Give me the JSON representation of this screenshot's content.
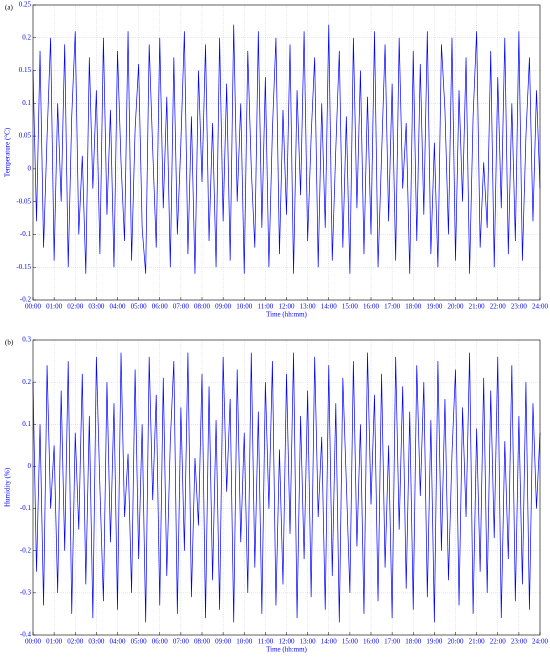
{
  "chart_data": [
    {
      "type": "line",
      "panel_label": "(a)",
      "x_label": "Time (hh:mm)",
      "y_label": "Temperature (°C)",
      "xlim": [
        0,
        1440
      ],
      "ylim": [
        -0.2,
        0.25
      ],
      "grid": true,
      "xticks": [
        {
          "value": 0,
          "label": "00:00"
        },
        {
          "value": 60,
          "label": "01:00"
        },
        {
          "value": 120,
          "label": "02:00"
        },
        {
          "value": 180,
          "label": "03:00"
        },
        {
          "value": 240,
          "label": "04:00"
        },
        {
          "value": 300,
          "label": "05:00"
        },
        {
          "value": 360,
          "label": "06:00"
        },
        {
          "value": 420,
          "label": "07:00"
        },
        {
          "value": 480,
          "label": "08:00"
        },
        {
          "value": 540,
          "label": "09:00"
        },
        {
          "value": 600,
          "label": "10:00"
        },
        {
          "value": 660,
          "label": "11:00"
        },
        {
          "value": 720,
          "label": "12:00"
        },
        {
          "value": 780,
          "label": "13:00"
        },
        {
          "value": 840,
          "label": "14:00"
        },
        {
          "value": 900,
          "label": "15:00"
        },
        {
          "value": 960,
          "label": "16:00"
        },
        {
          "value": 1020,
          "label": "17:00"
        },
        {
          "value": 1080,
          "label": "18:00"
        },
        {
          "value": 1140,
          "label": "19:00"
        },
        {
          "value": 1200,
          "label": "20:00"
        },
        {
          "value": 1260,
          "label": "21:00"
        },
        {
          "value": 1320,
          "label": "22:00"
        },
        {
          "value": 1380,
          "label": "23:00"
        },
        {
          "value": 1440,
          "label": "24:00"
        }
      ],
      "yticks": [
        -0.2,
        -0.15,
        -0.1,
        -0.05,
        0,
        0.05,
        0.1,
        0.15,
        0.2,
        0.25
      ],
      "x": [
        0,
        10,
        20,
        30,
        40,
        50,
        60,
        70,
        80,
        90,
        100,
        110,
        120,
        130,
        140,
        150,
        160,
        170,
        180,
        190,
        200,
        210,
        220,
        230,
        240,
        250,
        260,
        270,
        280,
        290,
        300,
        310,
        320,
        330,
        340,
        350,
        360,
        370,
        380,
        390,
        400,
        410,
        420,
        430,
        440,
        450,
        460,
        470,
        480,
        490,
        500,
        510,
        520,
        530,
        540,
        550,
        560,
        570,
        580,
        590,
        600,
        610,
        620,
        630,
        640,
        650,
        660,
        670,
        680,
        690,
        700,
        710,
        720,
        730,
        740,
        750,
        760,
        770,
        780,
        790,
        800,
        810,
        820,
        830,
        840,
        850,
        860,
        870,
        880,
        890,
        900,
        910,
        920,
        930,
        940,
        950,
        960,
        970,
        980,
        990,
        1000,
        1010,
        1020,
        1030,
        1040,
        1050,
        1060,
        1070,
        1080,
        1090,
        1100,
        1110,
        1120,
        1130,
        1140,
        1150,
        1160,
        1170,
        1180,
        1190,
        1200,
        1210,
        1220,
        1230,
        1240,
        1250,
        1260,
        1270,
        1280,
        1290,
        1300,
        1310,
        1320,
        1330,
        1340,
        1350,
        1360,
        1370,
        1380,
        1390,
        1400,
        1410,
        1420,
        1430,
        1440
      ],
      "series": [
        {
          "color": "#0000ff",
          "values": [
            0.15,
            -0.08,
            0.18,
            -0.12,
            0.05,
            0.2,
            -0.14,
            0.1,
            -0.05,
            0.19,
            -0.15,
            0.08,
            0.21,
            -0.1,
            0.02,
            -0.16,
            0.17,
            -0.03,
            0.12,
            -0.13,
            0.2,
            -0.07,
            0.09,
            -0.15,
            0.18,
            0.01,
            -0.11,
            0.21,
            -0.14,
            0.06,
            0.16,
            -0.09,
            -0.16,
            0.19,
            0.03,
            -0.12,
            0.2,
            -0.06,
            0.11,
            -0.15,
            0.17,
            -0.1,
            0.04,
            0.21,
            -0.13,
            0.08,
            -0.16,
            0.15,
            -0.02,
            0.19,
            -0.11,
            0.07,
            -0.15,
            0.2,
            -0.08,
            0.13,
            -0.14,
            0.22,
            -0.05,
            0.1,
            -0.16,
            0.18,
            0,
            -0.12,
            0.21,
            -0.09,
            0.14,
            -0.15,
            0.06,
            0.2,
            -0.13,
            0.09,
            -0.07,
            0.19,
            -0.16,
            0.12,
            -0.04,
            0.21,
            -0.11,
            0.05,
            0.17,
            -0.15,
            0.1,
            -0.09,
            0.22,
            -0.14,
            0.03,
            0.18,
            -0.12,
            0.08,
            -0.16,
            0.2,
            -0.06,
            0.15,
            -0.13,
            0.11,
            -0.1,
            0.21,
            -0.15,
            0.02,
            0.19,
            -0.08,
            0.13,
            -0.14,
            0.2,
            -0.03,
            0.07,
            -0.16,
            0.18,
            -0.11,
            0.16,
            -0.07,
            0.21,
            -0.13,
            0.04,
            -0.15,
            0.19,
            0.09,
            -0.1,
            0.2,
            -0.14,
            0.12,
            -0.05,
            0.17,
            -0.16,
            0.08,
            0.21,
            -0.12,
            0.01,
            -0.09,
            0.18,
            -0.15,
            0.14,
            -0.06,
            0.2,
            -0.13,
            0.1,
            -0.11,
            0.21,
            -0.14,
            0.05,
            0.17,
            -0.08,
            0.12,
            -0.03
          ]
        }
      ]
    },
    {
      "type": "line",
      "panel_label": "(b)",
      "x_label": "Time (hh:mm)",
      "y_label": "Humidity (%)",
      "xlim": [
        0,
        1440
      ],
      "ylim": [
        -0.4,
        0.3
      ],
      "grid": true,
      "xticks": [
        {
          "value": 0,
          "label": "00:00"
        },
        {
          "value": 60,
          "label": "01:00"
        },
        {
          "value": 120,
          "label": "02:00"
        },
        {
          "value": 180,
          "label": "03:00"
        },
        {
          "value": 240,
          "label": "04:00"
        },
        {
          "value": 300,
          "label": "05:00"
        },
        {
          "value": 360,
          "label": "06:00"
        },
        {
          "value": 420,
          "label": "07:00"
        },
        {
          "value": 480,
          "label": "08:00"
        },
        {
          "value": 540,
          "label": "09:00"
        },
        {
          "value": 600,
          "label": "10:00"
        },
        {
          "value": 660,
          "label": "11:00"
        },
        {
          "value": 720,
          "label": "12:00"
        },
        {
          "value": 780,
          "label": "13:00"
        },
        {
          "value": 840,
          "label": "14:00"
        },
        {
          "value": 900,
          "label": "15:00"
        },
        {
          "value": 960,
          "label": "16:00"
        },
        {
          "value": 1020,
          "label": "17:00"
        },
        {
          "value": 1080,
          "label": "18:00"
        },
        {
          "value": 1140,
          "label": "19:00"
        },
        {
          "value": 1200,
          "label": "20:00"
        },
        {
          "value": 1260,
          "label": "21:00"
        },
        {
          "value": 1320,
          "label": "22:00"
        },
        {
          "value": 1380,
          "label": "23:00"
        },
        {
          "value": 1440,
          "label": "24:00"
        }
      ],
      "yticks": [
        -0.4,
        -0.3,
        -0.2,
        -0.1,
        0,
        0.1,
        0.2,
        0.3
      ],
      "x": [
        0,
        10,
        20,
        30,
        40,
        50,
        60,
        70,
        80,
        90,
        100,
        110,
        120,
        130,
        140,
        150,
        160,
        170,
        180,
        190,
        200,
        210,
        220,
        230,
        240,
        250,
        260,
        270,
        280,
        290,
        300,
        310,
        320,
        330,
        340,
        350,
        360,
        370,
        380,
        390,
        400,
        410,
        420,
        430,
        440,
        450,
        460,
        470,
        480,
        490,
        500,
        510,
        520,
        530,
        540,
        550,
        560,
        570,
        580,
        590,
        600,
        610,
        620,
        630,
        640,
        650,
        660,
        670,
        680,
        690,
        700,
        710,
        720,
        730,
        740,
        750,
        760,
        770,
        780,
        790,
        800,
        810,
        820,
        830,
        840,
        850,
        860,
        870,
        880,
        890,
        900,
        910,
        920,
        930,
        940,
        950,
        960,
        970,
        980,
        990,
        1000,
        1010,
        1020,
        1030,
        1040,
        1050,
        1060,
        1070,
        1080,
        1090,
        1100,
        1110,
        1120,
        1130,
        1140,
        1150,
        1160,
        1170,
        1180,
        1190,
        1200,
        1210,
        1220,
        1230,
        1240,
        1250,
        1260,
        1270,
        1280,
        1290,
        1300,
        1310,
        1320,
        1330,
        1340,
        1350,
        1360,
        1370,
        1380,
        1390,
        1400,
        1410,
        1420,
        1430,
        1440
      ],
      "series": [
        {
          "color": "#0000ff",
          "values": [
            0.2,
            -0.25,
            0.1,
            -0.33,
            0.24,
            -0.1,
            0.05,
            -0.3,
            0.18,
            -0.2,
            0.25,
            -0.35,
            0.08,
            -0.15,
            0.22,
            -0.28,
            0.12,
            -0.36,
            0.26,
            -0.05,
            -0.32,
            0.2,
            -0.18,
            0.15,
            -0.34,
            0.27,
            -0.12,
            0.03,
            -0.3,
            0.23,
            -0.22,
            0.1,
            -0.37,
            0.26,
            -0.08,
            0.17,
            -0.33,
            0.21,
            -0.26,
            0.06,
            0.25,
            -0.35,
            0.14,
            -0.2,
            0.27,
            -0.31,
            0.02,
            -0.14,
            0.22,
            -0.36,
            0.19,
            -0.27,
            0.11,
            -0.34,
            0.26,
            -0.06,
            0.16,
            -0.37,
            0.23,
            -0.18,
            0.08,
            -0.3,
            0.27,
            -0.24,
            0.13,
            -0.35,
            0.2,
            -0.1,
            0.25,
            -0.33,
            0.04,
            -0.28,
            0.22,
            -0.16,
            0.27,
            -0.36,
            0.12,
            -0.22,
            0.18,
            -0.31,
            0.26,
            -0.12,
            0.07,
            -0.34,
            0.24,
            -0.26,
            0.15,
            -0.37,
            0.21,
            -0.04,
            -0.3,
            0.25,
            -0.19,
            0.1,
            -0.35,
            0.27,
            -0.09,
            0.17,
            -0.32,
            0.22,
            -0.24,
            0.05,
            -0.36,
            0.26,
            -0.15,
            0.19,
            -0.29,
            0.13,
            -0.34,
            0.24,
            -0.07,
            0.2,
            -0.31,
            0.11,
            -0.37,
            0.25,
            -0.2,
            0.16,
            -0.27,
            0.03,
            0.23,
            -0.33,
            0.14,
            -0.12,
            0.27,
            -0.35,
            0.09,
            -0.25,
            0.21,
            -0.3,
            0.18,
            -0.17,
            0.26,
            -0.36,
            0.06,
            -0.22,
            0.24,
            -0.32,
            0.12,
            -0.28,
            0.2,
            -0.34,
            0.15,
            -0.1,
            0.08
          ]
        }
      ]
    }
  ]
}
